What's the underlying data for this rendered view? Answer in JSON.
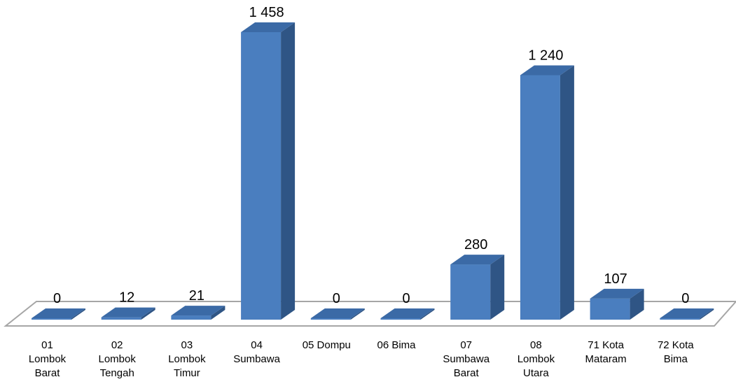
{
  "chart_data": {
    "type": "bar",
    "style": "3d-column",
    "title": "",
    "xlabel": "",
    "ylabel": "",
    "ylim": [
      0,
      1458
    ],
    "grid": false,
    "legend": "none",
    "categories": [
      [
        "01",
        "Lombok",
        "Barat"
      ],
      [
        "02",
        "Lombok",
        "Tengah"
      ],
      [
        "03",
        "Lombok",
        "Timur"
      ],
      [
        "04",
        "Sumbawa"
      ],
      [
        "05  Dompu"
      ],
      [
        "06  Bima"
      ],
      [
        "07",
        "Sumbawa",
        "Barat"
      ],
      [
        "08",
        "Lombok",
        "Utara"
      ],
      [
        "71  Kota",
        "Mataram"
      ],
      [
        "72  Kota",
        "Bima"
      ]
    ],
    "values": [
      0,
      12,
      21,
      1458,
      0,
      0,
      280,
      1240,
      107,
      0
    ],
    "value_labels": [
      "0",
      "12",
      "21",
      "1 458",
      "0",
      "0",
      "280",
      "1 240",
      "107",
      "0"
    ],
    "colors": {
      "front": "#4a7ebf",
      "side": "#2f5585",
      "top": "#3b6aa6",
      "floor": "#ffffff",
      "floor_edge": "#a6a6a6"
    }
  }
}
